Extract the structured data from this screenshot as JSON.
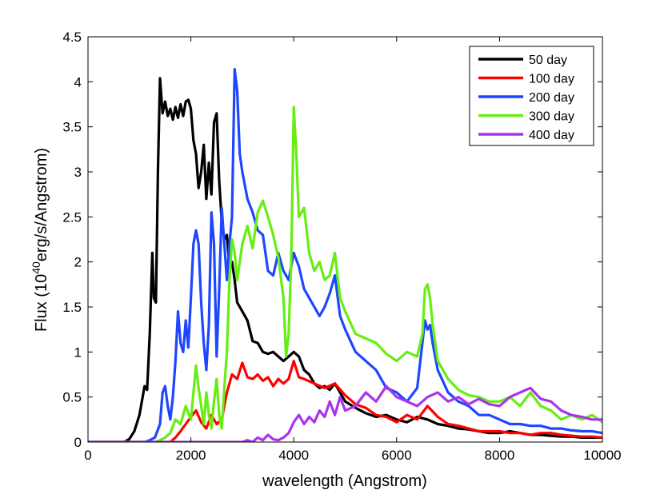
{
  "chart_data": {
    "type": "line",
    "title": "",
    "xlabel": "wavelength (Angstrom)",
    "ylabel": {
      "prefix": "Flux (10",
      "superscript": "40",
      "suffix": "erg/s/Angstrom)"
    },
    "xlim": [
      0,
      10000
    ],
    "ylim": [
      0,
      4.5
    ],
    "xticks": [
      0,
      2000,
      4000,
      6000,
      8000,
      10000
    ],
    "yticks": [
      0,
      0.5,
      1,
      1.5,
      2,
      2.5,
      3,
      3.5,
      4,
      4.5
    ],
    "xtick_labels": [
      "0",
      "2000",
      "4000",
      "6000",
      "8000",
      "10000"
    ],
    "ytick_labels": [
      "0",
      "0.5",
      "1",
      "1.5",
      "2",
      "2.5",
      "3",
      "3.5",
      "4",
      "4.5"
    ],
    "grid": false,
    "legend_position": "top-right",
    "series": [
      {
        "name": "50 day",
        "color": "#000000",
        "x": [
          0,
          700,
          800,
          900,
          1000,
          1100,
          1150,
          1200,
          1250,
          1280,
          1320,
          1360,
          1400,
          1450,
          1500,
          1550,
          1600,
          1650,
          1700,
          1750,
          1800,
          1850,
          1900,
          1950,
          2000,
          2050,
          2100,
          2150,
          2200,
          2250,
          2300,
          2350,
          2400,
          2450,
          2500,
          2550,
          2600,
          2650,
          2700,
          2750,
          2800,
          2850,
          2900,
          3000,
          3100,
          3200,
          3300,
          3400,
          3500,
          3600,
          3700,
          3800,
          3900,
          4000,
          4100,
          4200,
          4300,
          4400,
          4500,
          4600,
          4700,
          4800,
          4900,
          5000,
          5200,
          5400,
          5600,
          5800,
          6000,
          6200,
          6400,
          6600,
          6800,
          7000,
          7200,
          7400,
          7600,
          7800,
          8000,
          8200,
          8400,
          8600,
          8800,
          9000,
          9200,
          9400,
          9600,
          9800,
          10000
        ],
        "y": [
          0,
          0,
          0.03,
          0.12,
          0.3,
          0.62,
          0.58,
          1.2,
          2.1,
          1.6,
          1.55,
          3.0,
          4.04,
          3.65,
          3.78,
          3.62,
          3.7,
          3.58,
          3.72,
          3.6,
          3.75,
          3.62,
          3.78,
          3.8,
          3.7,
          3.35,
          3.2,
          2.82,
          3.0,
          3.3,
          2.7,
          3.1,
          2.75,
          3.55,
          3.65,
          2.9,
          2.45,
          2.25,
          2.3,
          1.95,
          2.0,
          1.8,
          1.55,
          1.45,
          1.35,
          1.12,
          1.1,
          1.0,
          0.98,
          1.0,
          0.95,
          0.9,
          0.95,
          1.0,
          0.95,
          0.8,
          0.75,
          0.65,
          0.6,
          0.62,
          0.58,
          0.65,
          0.55,
          0.45,
          0.38,
          0.32,
          0.28,
          0.3,
          0.25,
          0.22,
          0.28,
          0.25,
          0.2,
          0.18,
          0.15,
          0.14,
          0.12,
          0.1,
          0.1,
          0.12,
          0.1,
          0.08,
          0.08,
          0.07,
          0.06,
          0.06,
          0.05,
          0.05,
          0.05
        ]
      },
      {
        "name": "100 day",
        "color": "#ff0000",
        "x": [
          0,
          1600,
          1700,
          1800,
          1900,
          2000,
          2100,
          2200,
          2300,
          2400,
          2500,
          2600,
          2700,
          2800,
          2900,
          3000,
          3100,
          3200,
          3300,
          3400,
          3500,
          3600,
          3700,
          3800,
          3900,
          4000,
          4100,
          4200,
          4400,
          4600,
          4800,
          5000,
          5200,
          5400,
          5600,
          5800,
          6000,
          6200,
          6400,
          6600,
          6800,
          7000,
          7200,
          7400,
          7600,
          7800,
          8000,
          8200,
          8400,
          8600,
          8800,
          9000,
          9200,
          9400,
          9600,
          9800,
          10000
        ],
        "y": [
          0,
          0,
          0.05,
          0.12,
          0.2,
          0.28,
          0.35,
          0.22,
          0.15,
          0.3,
          0.2,
          0.25,
          0.55,
          0.75,
          0.7,
          0.88,
          0.72,
          0.7,
          0.75,
          0.68,
          0.72,
          0.62,
          0.7,
          0.65,
          0.7,
          0.9,
          0.72,
          0.7,
          0.65,
          0.6,
          0.65,
          0.52,
          0.42,
          0.38,
          0.3,
          0.28,
          0.22,
          0.3,
          0.25,
          0.4,
          0.28,
          0.2,
          0.18,
          0.15,
          0.12,
          0.12,
          0.12,
          0.1,
          0.1,
          0.08,
          0.1,
          0.1,
          0.08,
          0.07,
          0.06,
          0.06,
          0.05
        ]
      },
      {
        "name": "200 day",
        "color": "#1e46ff",
        "x": [
          0,
          1000,
          1100,
          1200,
          1300,
          1400,
          1450,
          1500,
          1550,
          1600,
          1650,
          1700,
          1750,
          1800,
          1850,
          1900,
          1950,
          2000,
          2050,
          2100,
          2150,
          2200,
          2250,
          2300,
          2350,
          2400,
          2450,
          2500,
          2550,
          2600,
          2650,
          2700,
          2750,
          2800,
          2850,
          2900,
          2950,
          3000,
          3100,
          3200,
          3300,
          3400,
          3500,
          3600,
          3700,
          3800,
          3900,
          4000,
          4100,
          4200,
          4300,
          4400,
          4500,
          4600,
          4700,
          4800,
          4900,
          5000,
          5200,
          5400,
          5600,
          5800,
          6000,
          6200,
          6400,
          6500,
          6550,
          6600,
          6650,
          6700,
          6800,
          7000,
          7200,
          7400,
          7600,
          7800,
          8000,
          8200,
          8400,
          8600,
          8800,
          9000,
          9200,
          9400,
          9600,
          9800,
          10000
        ],
        "y": [
          0,
          0,
          0.0,
          0.02,
          0.05,
          0.2,
          0.55,
          0.62,
          0.4,
          0.25,
          0.5,
          0.9,
          1.45,
          1.1,
          1.0,
          1.35,
          1.05,
          1.6,
          2.2,
          2.35,
          2.2,
          1.55,
          1.1,
          0.8,
          1.3,
          2.55,
          2.2,
          0.95,
          1.7,
          2.6,
          2.2,
          1.8,
          2.2,
          2.5,
          4.14,
          3.9,
          3.2,
          3.0,
          2.7,
          2.55,
          2.35,
          2.3,
          1.9,
          1.85,
          2.1,
          1.9,
          1.8,
          2.1,
          1.95,
          1.7,
          1.6,
          1.5,
          1.4,
          1.5,
          1.65,
          1.85,
          1.4,
          1.25,
          1.0,
          0.9,
          0.8,
          0.6,
          0.55,
          0.45,
          0.6,
          1.1,
          1.35,
          1.25,
          1.3,
          1.1,
          0.8,
          0.55,
          0.45,
          0.4,
          0.3,
          0.3,
          0.25,
          0.2,
          0.2,
          0.18,
          0.18,
          0.15,
          0.15,
          0.13,
          0.12,
          0.12,
          0.1
        ]
      },
      {
        "name": "300 day",
        "color": "#66ee11",
        "x": [
          0,
          1300,
          1400,
          1500,
          1600,
          1700,
          1800,
          1900,
          2000,
          2050,
          2100,
          2150,
          2200,
          2250,
          2300,
          2350,
          2400,
          2450,
          2500,
          2550,
          2600,
          2650,
          2700,
          2750,
          2800,
          2850,
          2900,
          3000,
          3100,
          3200,
          3300,
          3400,
          3500,
          3600,
          3700,
          3800,
          3850,
          3900,
          3950,
          4000,
          4050,
          4100,
          4200,
          4300,
          4400,
          4500,
          4600,
          4700,
          4800,
          4900,
          5000,
          5200,
          5400,
          5600,
          5800,
          6000,
          6200,
          6400,
          6500,
          6550,
          6600,
          6650,
          6700,
          6800,
          7000,
          7200,
          7400,
          7600,
          7800,
          8000,
          8200,
          8400,
          8600,
          8800,
          9000,
          9200,
          9400,
          9600,
          9800,
          10000
        ],
        "y": [
          0,
          0,
          0.02,
          0.05,
          0.1,
          0.25,
          0.2,
          0.4,
          0.25,
          0.55,
          0.85,
          0.6,
          0.4,
          0.2,
          0.55,
          0.3,
          0.15,
          0.45,
          0.7,
          0.3,
          0.15,
          0.6,
          1.0,
          1.8,
          2.25,
          2.1,
          1.8,
          2.2,
          2.4,
          2.15,
          2.55,
          2.68,
          2.5,
          2.3,
          2.05,
          1.6,
          0.95,
          1.2,
          2.0,
          3.72,
          3.2,
          2.5,
          2.6,
          2.1,
          1.9,
          2.0,
          1.8,
          1.85,
          2.1,
          1.6,
          1.45,
          1.2,
          1.15,
          1.1,
          0.98,
          0.9,
          1.0,
          0.95,
          1.2,
          1.7,
          1.75,
          1.6,
          1.3,
          0.9,
          0.7,
          0.58,
          0.52,
          0.5,
          0.45,
          0.45,
          0.5,
          0.4,
          0.55,
          0.4,
          0.35,
          0.25,
          0.3,
          0.25,
          0.3,
          0.22
        ]
      },
      {
        "name": "400 day",
        "color": "#aa33ee",
        "x": [
          0,
          3000,
          3100,
          3200,
          3300,
          3400,
          3500,
          3600,
          3700,
          3800,
          3900,
          4000,
          4100,
          4200,
          4300,
          4400,
          4500,
          4600,
          4700,
          4800,
          4900,
          5000,
          5200,
          5400,
          5600,
          5800,
          6000,
          6200,
          6400,
          6600,
          6800,
          7000,
          7200,
          7400,
          7600,
          7800,
          8000,
          8200,
          8400,
          8600,
          8800,
          9000,
          9200,
          9400,
          9600,
          9800,
          10000
        ],
        "y": [
          0,
          0,
          0.02,
          0.0,
          0.05,
          0.02,
          0.08,
          0.03,
          0.02,
          0.05,
          0.1,
          0.22,
          0.3,
          0.2,
          0.28,
          0.22,
          0.35,
          0.28,
          0.45,
          0.3,
          0.5,
          0.35,
          0.4,
          0.55,
          0.45,
          0.62,
          0.5,
          0.45,
          0.4,
          0.5,
          0.55,
          0.45,
          0.5,
          0.42,
          0.48,
          0.42,
          0.4,
          0.5,
          0.55,
          0.6,
          0.48,
          0.45,
          0.35,
          0.3,
          0.28,
          0.25,
          0.25
        ]
      }
    ]
  }
}
